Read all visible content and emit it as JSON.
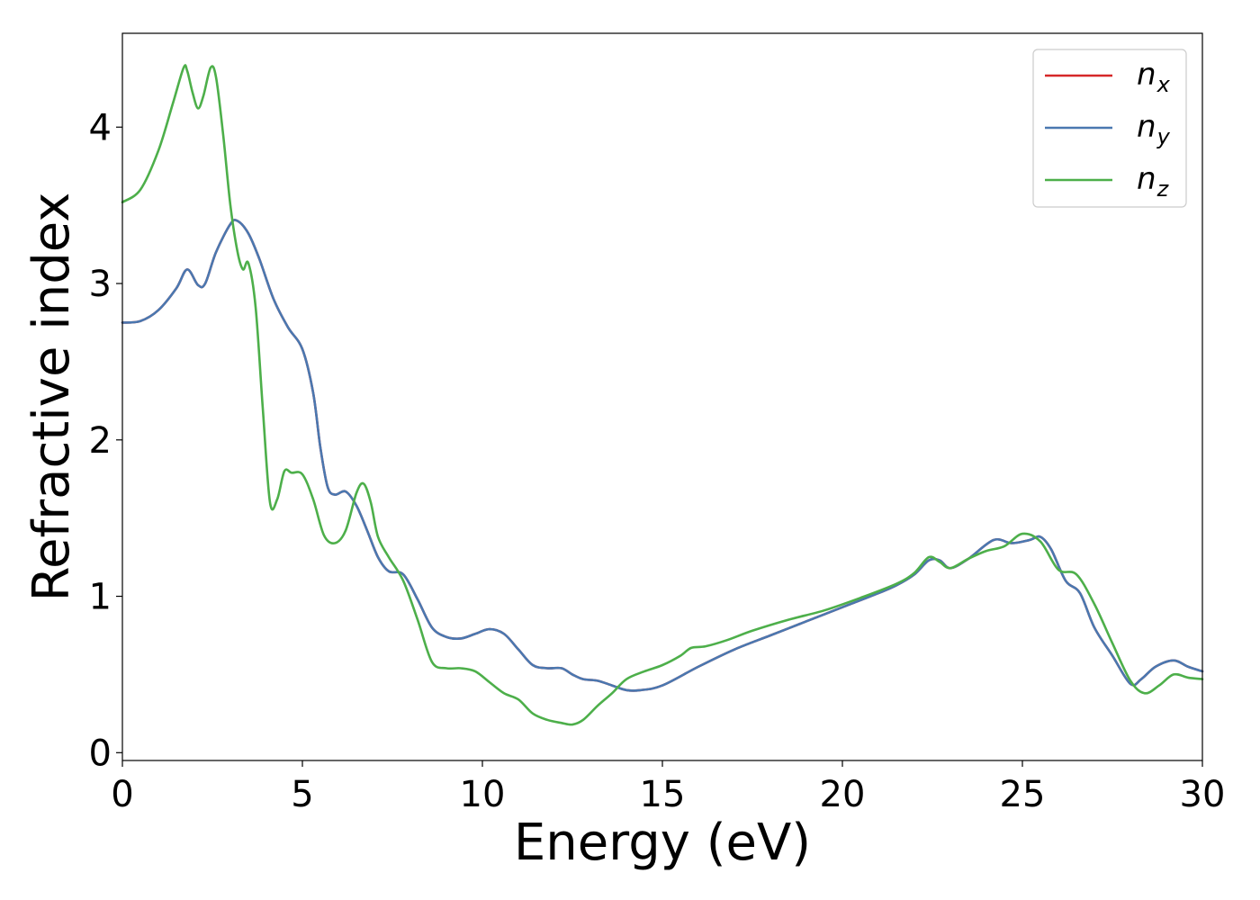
{
  "chart_data": {
    "type": "line",
    "xlabel": "Energy (eV)",
    "ylabel": "Refractive index",
    "xlim": [
      0,
      30
    ],
    "ylim": [
      -0.05,
      4.6
    ],
    "xticks": [
      0,
      5,
      10,
      15,
      20,
      25,
      30
    ],
    "yticks": [
      0,
      1,
      2,
      3,
      4
    ],
    "grid": false,
    "legend_position": "top-right",
    "series": [
      {
        "name": "n_x",
        "label_main": "n",
        "label_sub": "x",
        "color": "#d62728",
        "x": [
          0,
          0.5,
          1,
          1.5,
          1.8,
          2.1,
          2.3,
          2.6,
          3.0,
          3.2,
          3.5,
          3.8,
          4.2,
          4.6,
          5.0,
          5.3,
          5.5,
          5.7,
          5.9,
          6.2,
          6.5,
          6.8,
          7.1,
          7.4,
          7.8,
          8.2,
          8.6,
          9.0,
          9.4,
          9.8,
          10.2,
          10.6,
          11.0,
          11.4,
          11.8,
          12.2,
          12.5,
          12.8,
          13.2,
          13.6,
          14.0,
          14.4,
          15.0,
          16.0,
          17.0,
          18.0,
          19.0,
          20.0,
          21.0,
          21.5,
          22.0,
          22.4,
          22.7,
          23.0,
          23.5,
          24.2,
          24.7,
          25.2,
          25.5,
          25.8,
          26.2,
          26.6,
          27.0,
          27.5,
          28.0,
          28.3,
          28.7,
          29.2,
          29.6,
          30
        ],
        "y": [
          2.75,
          2.76,
          2.83,
          2.97,
          3.09,
          2.99,
          3.0,
          3.2,
          3.38,
          3.4,
          3.32,
          3.16,
          2.9,
          2.72,
          2.58,
          2.3,
          1.95,
          1.7,
          1.65,
          1.67,
          1.58,
          1.42,
          1.25,
          1.16,
          1.14,
          0.98,
          0.8,
          0.74,
          0.73,
          0.76,
          0.79,
          0.76,
          0.66,
          0.56,
          0.54,
          0.54,
          0.5,
          0.47,
          0.46,
          0.43,
          0.4,
          0.4,
          0.43,
          0.55,
          0.66,
          0.75,
          0.84,
          0.93,
          1.02,
          1.07,
          1.14,
          1.23,
          1.23,
          1.18,
          1.24,
          1.36,
          1.34,
          1.36,
          1.38,
          1.3,
          1.1,
          1.02,
          0.8,
          0.62,
          0.44,
          0.47,
          0.55,
          0.59,
          0.55,
          0.52
        ]
      },
      {
        "name": "n_y",
        "label_main": "n",
        "label_sub": "y",
        "color": "#4a78b0",
        "x": [
          0,
          0.5,
          1,
          1.5,
          1.8,
          2.1,
          2.3,
          2.6,
          3.0,
          3.2,
          3.5,
          3.8,
          4.2,
          4.6,
          5.0,
          5.3,
          5.5,
          5.7,
          5.9,
          6.2,
          6.5,
          6.8,
          7.1,
          7.4,
          7.8,
          8.2,
          8.6,
          9.0,
          9.4,
          9.8,
          10.2,
          10.6,
          11.0,
          11.4,
          11.8,
          12.2,
          12.5,
          12.8,
          13.2,
          13.6,
          14.0,
          14.4,
          15.0,
          16.0,
          17.0,
          18.0,
          19.0,
          20.0,
          21.0,
          21.5,
          22.0,
          22.4,
          22.7,
          23.0,
          23.5,
          24.2,
          24.7,
          25.2,
          25.5,
          25.8,
          26.2,
          26.6,
          27.0,
          27.5,
          28.0,
          28.3,
          28.7,
          29.2,
          29.6,
          30
        ],
        "y": [
          2.75,
          2.76,
          2.83,
          2.97,
          3.09,
          2.99,
          3.0,
          3.2,
          3.38,
          3.4,
          3.32,
          3.16,
          2.9,
          2.72,
          2.58,
          2.3,
          1.95,
          1.7,
          1.65,
          1.67,
          1.58,
          1.42,
          1.25,
          1.16,
          1.14,
          0.98,
          0.8,
          0.74,
          0.73,
          0.76,
          0.79,
          0.76,
          0.66,
          0.56,
          0.54,
          0.54,
          0.5,
          0.47,
          0.46,
          0.43,
          0.4,
          0.4,
          0.43,
          0.55,
          0.66,
          0.75,
          0.84,
          0.93,
          1.02,
          1.07,
          1.14,
          1.23,
          1.23,
          1.18,
          1.24,
          1.36,
          1.34,
          1.36,
          1.38,
          1.3,
          1.1,
          1.02,
          0.8,
          0.62,
          0.44,
          0.47,
          0.55,
          0.59,
          0.55,
          0.52
        ]
      },
      {
        "name": "n_z",
        "label_main": "n",
        "label_sub": "z",
        "color": "#4daf4a",
        "x": [
          0,
          0.5,
          1,
          1.4,
          1.7,
          1.8,
          1.95,
          2.1,
          2.25,
          2.45,
          2.6,
          2.8,
          3.0,
          3.2,
          3.35,
          3.5,
          3.7,
          3.9,
          4.1,
          4.3,
          4.5,
          4.7,
          5.0,
          5.3,
          5.6,
          5.9,
          6.2,
          6.5,
          6.7,
          6.9,
          7.1,
          7.4,
          7.8,
          8.2,
          8.6,
          9.0,
          9.4,
          9.8,
          10.2,
          10.6,
          11.0,
          11.4,
          11.8,
          12.2,
          12.5,
          12.8,
          13.2,
          13.6,
          14.0,
          14.5,
          15.0,
          15.5,
          15.8,
          16.2,
          16.8,
          17.5,
          18.5,
          19.5,
          20.5,
          21.5,
          22.0,
          22.4,
          22.7,
          23.0,
          23.5,
          24.0,
          24.5,
          25.0,
          25.5,
          26.0,
          26.5,
          27.0,
          27.5,
          28.0,
          28.4,
          28.8,
          29.2,
          29.6,
          30
        ],
        "y": [
          3.52,
          3.6,
          3.85,
          4.15,
          4.38,
          4.36,
          4.22,
          4.12,
          4.2,
          4.38,
          4.32,
          3.95,
          3.5,
          3.2,
          3.09,
          3.13,
          2.85,
          2.2,
          1.6,
          1.62,
          1.8,
          1.79,
          1.78,
          1.62,
          1.39,
          1.34,
          1.42,
          1.66,
          1.72,
          1.6,
          1.38,
          1.25,
          1.1,
          0.85,
          0.58,
          0.54,
          0.54,
          0.52,
          0.45,
          0.38,
          0.34,
          0.25,
          0.21,
          0.19,
          0.18,
          0.21,
          0.3,
          0.38,
          0.47,
          0.52,
          0.56,
          0.62,
          0.67,
          0.68,
          0.72,
          0.78,
          0.85,
          0.91,
          0.99,
          1.08,
          1.15,
          1.25,
          1.22,
          1.18,
          1.24,
          1.29,
          1.32,
          1.4,
          1.35,
          1.17,
          1.14,
          0.95,
          0.7,
          0.46,
          0.38,
          0.43,
          0.5,
          0.48,
          0.47
        ]
      }
    ]
  }
}
